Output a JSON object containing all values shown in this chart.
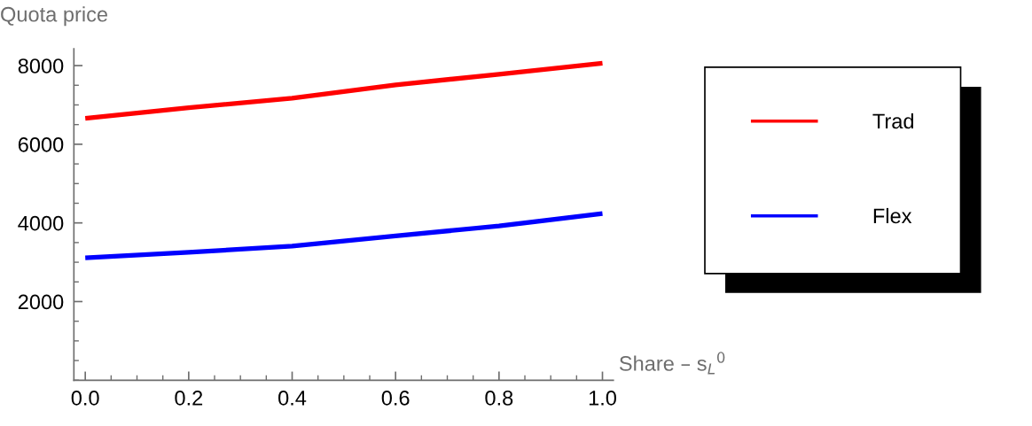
{
  "chart_data": {
    "type": "line",
    "xlabel": "Share – s$_{L}$$^{0}$",
    "ylabel": "Quota price",
    "x": [
      0,
      0.2,
      0.4,
      0.6,
      0.8,
      1.0
    ],
    "series": [
      {
        "name": "Trad",
        "color": "#ff0000",
        "values": [
          6660,
          6930,
          7170,
          7510,
          7780,
          8060
        ]
      },
      {
        "name": "Flex",
        "color": "#0000ff",
        "values": [
          3110,
          3250,
          3410,
          3670,
          3920,
          4240
        ]
      }
    ],
    "xlim": [
      -0.022,
      1.021
    ],
    "ylim": [
      0,
      8430
    ],
    "xticks": [
      {
        "value": 0,
        "label": "0.0"
      },
      0.2,
      0.4,
      0.6,
      0.8,
      {
        "value": 1.0,
        "label": "1.0"
      }
    ],
    "yticks": [
      2000,
      4000,
      6000,
      8000
    ],
    "grid": false,
    "legend": "right",
    "marker": "none",
    "line_style": "solid"
  }
}
